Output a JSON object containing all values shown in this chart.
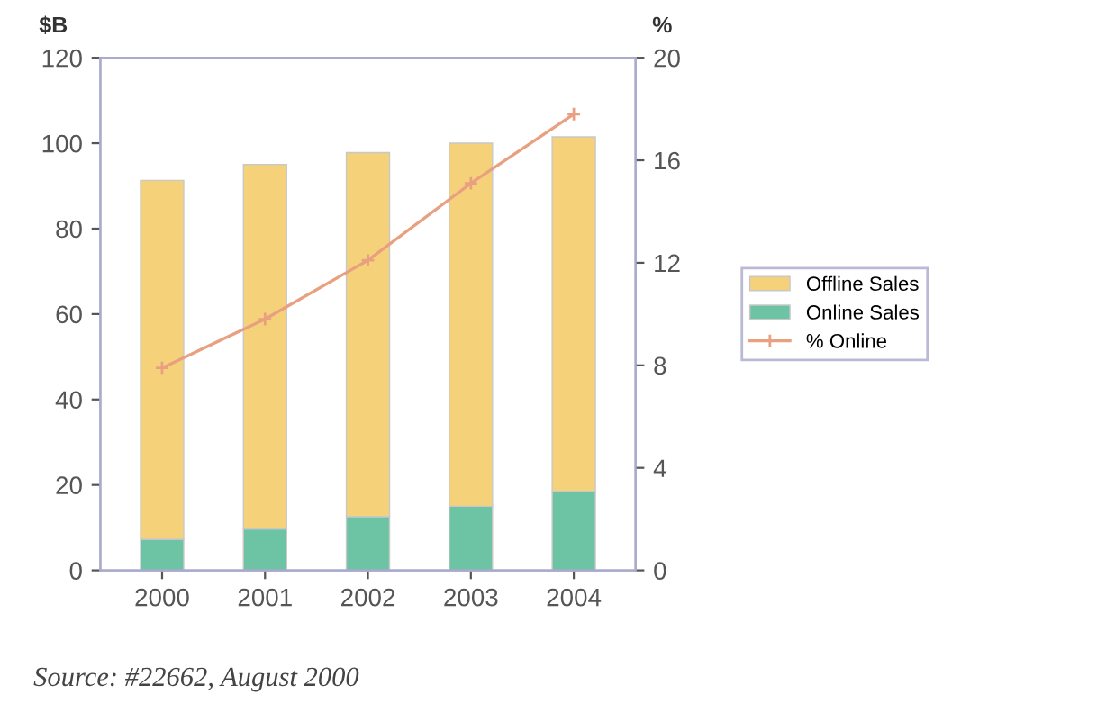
{
  "chart_data": {
    "type": "bar",
    "stacked": true,
    "xlabel": null,
    "ylabel": "$B",
    "y2label": "%",
    "categories": [
      "2000",
      "2001",
      "2002",
      "2003",
      "2004"
    ],
    "series": [
      {
        "name": "Online Sales",
        "color": "#6cc4a4",
        "values": [
          7.3,
          9.7,
          12.6,
          15,
          18.5
        ]
      },
      {
        "name": "Offline Sales",
        "color": "#f5d27a",
        "values": [
          84,
          85.3,
          85.2,
          85,
          83
        ]
      },
      {
        "name": "% Online",
        "type": "line",
        "axis": "y2",
        "color": "#e8a080",
        "marker": "cross",
        "values": [
          7.9,
          9.8,
          12.1,
          15.1,
          17.8
        ]
      }
    ],
    "ylim": [
      0,
      120
    ],
    "yticks": [
      0,
      20,
      40,
      60,
      80,
      100,
      120
    ],
    "y2lim": [
      0,
      20
    ],
    "y2ticks": [
      0,
      4,
      8,
      12,
      16,
      20
    ],
    "grid": false,
    "legend": "right",
    "annotations": [
      "Source: #22662, August 2000"
    ]
  }
}
